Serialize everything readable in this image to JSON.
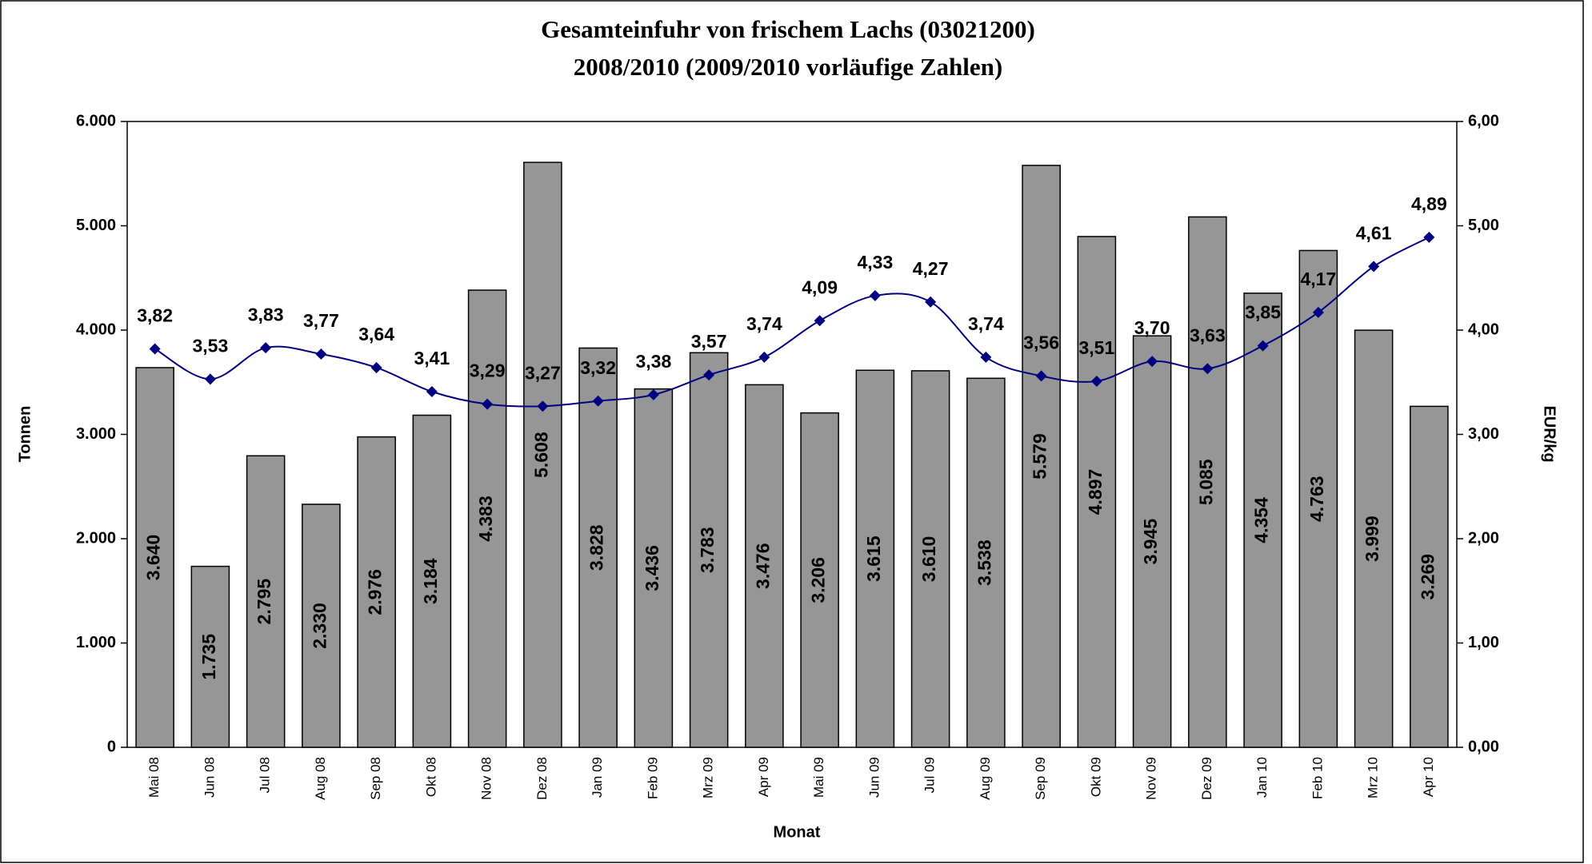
{
  "chart_data": {
    "type": "bar",
    "title": "Gesamteinfuhr von frischem Lachs (03021200)",
    "subtitle": "2008/2010 (2009/2010 vorläufige Zahlen)",
    "x_label": "Monat",
    "y_label": "Tonnen",
    "y2_label": "EUR/kg",
    "categories": [
      "Mai 08",
      "Jun 08",
      "Jul 08",
      "Aug 08",
      "Sep 08",
      "Okt 08",
      "Nov 08",
      "Dez 08",
      "Jan 09",
      "Feb 09",
      "Mrz 09",
      "Apr 09",
      "Mai 09",
      "Jun 09",
      "Jul 09",
      "Aug 09",
      "Sep 09",
      "Okt 09",
      "Nov 09",
      "Dez 09",
      "Jan 10",
      "Feb 10",
      "Mrz 10",
      "Apr 10"
    ],
    "series": [
      {
        "type": "bar",
        "color": "#969696",
        "values": [
          3640,
          1735,
          2795,
          2330,
          2976,
          3184,
          4383,
          5608,
          3828,
          3436,
          3783,
          3476,
          3206,
          3615,
          3610,
          3538,
          5579,
          4897,
          3945,
          5085,
          4354,
          4763,
          3999,
          3269
        ],
        "value_labels": [
          "3.640",
          "1.735",
          "2.795",
          "2.330",
          "2.976",
          "3.184",
          "4.383",
          "5.608",
          "3.828",
          "3.436",
          "3.783",
          "3.476",
          "3.206",
          "3.615",
          "3.610",
          "3.538",
          "5.579",
          "4.897",
          "3.945",
          "5.085",
          "4.354",
          "4.763",
          "3.999",
          "3.269"
        ]
      },
      {
        "type": "line",
        "axis": "y2",
        "color": "#000080",
        "values": [
          3.82,
          3.53,
          3.83,
          3.77,
          3.64,
          3.41,
          3.29,
          3.27,
          3.32,
          3.38,
          3.57,
          3.74,
          4.09,
          4.33,
          4.27,
          3.74,
          3.56,
          3.51,
          3.7,
          3.63,
          3.85,
          4.17,
          4.61,
          4.89
        ],
        "value_labels": [
          "3,82",
          "3,53",
          "3,83",
          "3,77",
          "3,64",
          "3,41",
          "3,29",
          "3,27",
          "3,32",
          "3,38",
          "3,57",
          "3,74",
          "4,09",
          "4,33",
          "4,27",
          "3,74",
          "3,56",
          "3,51",
          "3,70",
          "3,63",
          "3,85",
          "4,17",
          "4,61",
          "4,89"
        ]
      }
    ],
    "ylim": [
      0,
      6000
    ],
    "yticks": [
      0,
      {
        "value": 1000,
        "label": "1.000"
      },
      {
        "value": 2000,
        "label": "2.000"
      },
      {
        "value": 3000,
        "label": "3.000"
      },
      {
        "value": 4000,
        "label": "4.000"
      },
      {
        "value": 5000,
        "label": "5.000"
      },
      {
        "value": 6000,
        "label": "6.000"
      }
    ],
    "y2lim": [
      0,
      6
    ],
    "y2ticks": [
      {
        "value": 0,
        "label": "0,00"
      },
      {
        "value": 1,
        "label": "1,00"
      },
      {
        "value": 2,
        "label": "2,00"
      },
      {
        "value": 3,
        "label": "3,00"
      },
      {
        "value": 4,
        "label": "4,00"
      },
      {
        "value": 5,
        "label": "5,00"
      },
      {
        "value": 6,
        "label": "6,00"
      }
    ]
  }
}
